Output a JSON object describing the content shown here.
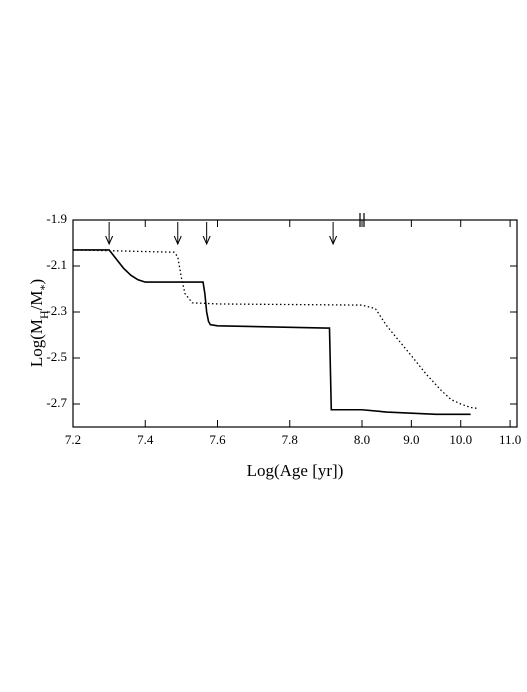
{
  "chart_data": {
    "type": "line",
    "xlabel": "Log(Age [yr])",
    "ylabel": [
      {
        "text": "Log(M"
      },
      {
        "text": "H",
        "sub": true
      },
      {
        "text": "/M"
      },
      {
        "text": "*",
        "sub": true
      },
      {
        "text": ")"
      }
    ],
    "xlim": [
      7.2,
      11.14
    ],
    "xbreak": 8.0,
    "ylim": [
      -2.8,
      -1.9
    ],
    "xticks": [
      7.2,
      7.4,
      7.6,
      7.8,
      {
        "value": 8.0,
        "label": "8.0"
      },
      {
        "value": 9.0,
        "label": "9.0"
      },
      {
        "value": 10.0,
        "label": "10.0"
      },
      {
        "value": 11.0,
        "label": "11.0"
      }
    ],
    "yticks": [
      -1.9,
      -2.1,
      -2.3,
      -2.5,
      -2.7
    ],
    "arrows": [
      7.3,
      7.49,
      7.57,
      7.92
    ],
    "series": [
      {
        "color": "#000000",
        "dash": "solid",
        "x": [
          7.2,
          7.3,
          7.32,
          7.34,
          7.36,
          7.38,
          7.4,
          7.45,
          7.56,
          7.565,
          7.57,
          7.575,
          7.58,
          7.6,
          7.9,
          7.91,
          7.915,
          8.0,
          8.5,
          9.0,
          9.5,
          10.0,
          10.2
        ],
        "values": [
          -2.03,
          -2.03,
          -2.07,
          -2.11,
          -2.14,
          -2.16,
          -2.17,
          -2.17,
          -2.17,
          -2.22,
          -2.3,
          -2.34,
          -2.355,
          -2.36,
          -2.37,
          -2.37,
          -2.725,
          -2.725,
          -2.735,
          -2.74,
          -2.745,
          -2.745,
          -2.745
        ]
      },
      {
        "color": "#000000",
        "dash": "dotted",
        "x": [
          7.2,
          7.48,
          7.49,
          7.5,
          7.51,
          7.53,
          7.6,
          8.0,
          8.27,
          8.5,
          9.0,
          9.3,
          9.6,
          9.8,
          10.0,
          10.2,
          10.37
        ],
        "values": [
          -2.03,
          -2.04,
          -2.06,
          -2.15,
          -2.22,
          -2.26,
          -2.265,
          -2.27,
          -2.285,
          -2.36,
          -2.49,
          -2.57,
          -2.64,
          -2.68,
          -2.7,
          -2.715,
          -2.72
        ]
      }
    ]
  }
}
